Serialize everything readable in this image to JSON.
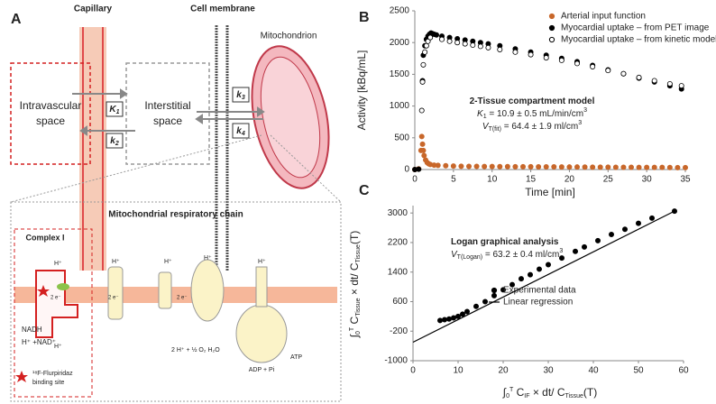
{
  "panels": [
    "A",
    "B",
    "C"
  ],
  "diagram": {
    "capillary": "Capillary",
    "cell_membrane": "Cell membrane",
    "mitochondrion": "Mitochondrion",
    "intravascular": [
      "Intravascular",
      "space"
    ],
    "interstitial": [
      "Interstitial",
      "space"
    ],
    "rates": [
      [
        "K",
        "1"
      ],
      [
        "k",
        "2"
      ],
      [
        "k",
        "3"
      ],
      [
        "k",
        "4"
      ]
    ],
    "chain_title": "Mitochondrial respiratory chain",
    "complex": "Complex I",
    "nadh": "NADH",
    "nad": "H⁺ +NAD⁺",
    "binding": [
      "¹⁸F-Flurpiridaz",
      "binding site"
    ],
    "protons": [
      "H⁺",
      "H⁺",
      "H⁺",
      "H⁺",
      "H⁺",
      "H⁺"
    ],
    "electrons": [
      "2 e⁻",
      "2 e⁻",
      "2 e⁻"
    ],
    "water": "2 H⁺ + ½ O₂ H₂O",
    "atp": "ATP",
    "adp": "ADP + Pi"
  },
  "chart_data": [
    {
      "type": "scatter",
      "xlabel": "Time [min]",
      "ylabel": "Activity [kBq/mL]",
      "xlim": [
        0,
        35
      ],
      "xticks": [
        0,
        5,
        10,
        15,
        20,
        25,
        30,
        35
      ],
      "ylim": [
        0,
        2500
      ],
      "yticks": [
        0,
        500,
        1000,
        1500,
        2000,
        2500
      ],
      "legend": "upper right",
      "annotations": [
        {
          "parts": [
            "2-Tissue compartment model"
          ]
        },
        {
          "parts": [
            "K",
            "1",
            " = 10.9 ± 0.5 mL/min/cm",
            "3"
          ]
        },
        {
          "parts": [
            "V",
            "T(fit)",
            " = 64.4 ± 1.9 ml/cm",
            "3"
          ]
        }
      ],
      "series": [
        {
          "name": "Arterial input function",
          "type": "scatter",
          "color": "#c8672a",
          "filled": true,
          "x": [
            0,
            0.5,
            0.8,
            0.9,
            1.0,
            1.1,
            1.2,
            1.4,
            1.6,
            1.8,
            2,
            2.5,
            3,
            4,
            5,
            6,
            7,
            8,
            9,
            10,
            11,
            12,
            13,
            14,
            15,
            16,
            17,
            18,
            19,
            20,
            21,
            22,
            23,
            24,
            25,
            26,
            27,
            28,
            29,
            30,
            31,
            32,
            33,
            34,
            35
          ],
          "values": [
            0,
            10,
            300,
            520,
            400,
            300,
            220,
            150,
            110,
            90,
            80,
            70,
            65,
            60,
            55,
            52,
            50,
            50,
            48,
            48,
            47,
            46,
            45,
            45,
            44,
            43,
            42,
            42,
            41,
            40,
            40,
            39,
            38,
            38,
            37,
            36,
            36,
            35,
            34,
            34,
            33,
            33,
            32,
            31,
            30
          ]
        },
        {
          "name": "Myocardial uptake – from PET image",
          "type": "scatter",
          "color": "#000000",
          "filled": true,
          "x": [
            0,
            0.5,
            1.0,
            1.1,
            1.3,
            1.5,
            1.7,
            1.9,
            2.1,
            2.3,
            2.5,
            2.8,
            3.5,
            4.5,
            5.5,
            6.5,
            7.5,
            8.5,
            9.5,
            11,
            13,
            15,
            17,
            19,
            21,
            23,
            25,
            27,
            29,
            31,
            33,
            34.5
          ],
          "values": [
            0,
            5,
            1400,
            1800,
            1950,
            2050,
            2100,
            2130,
            2150,
            2140,
            2130,
            2120,
            2100,
            2080,
            2060,
            2040,
            2020,
            2000,
            1980,
            1950,
            1900,
            1850,
            1800,
            1750,
            1700,
            1640,
            1570,
            1510,
            1440,
            1380,
            1320,
            1270
          ]
        },
        {
          "name": "Myocardial uptake – from kinetic model",
          "type": "scatter",
          "color": "#000000",
          "filled": false,
          "x": [
            0.9,
            1.0,
            1.1,
            1.3,
            1.5,
            1.7,
            2.0,
            3.5,
            4.5,
            5.5,
            6.5,
            7.5,
            8.5,
            9.5,
            11,
            13,
            15,
            17,
            19,
            21,
            23,
            25,
            27,
            29,
            31,
            33,
            34.5
          ],
          "values": [
            930,
            1380,
            1650,
            1850,
            1950,
            2020,
            2080,
            2050,
            2020,
            2000,
            1980,
            1960,
            1940,
            1920,
            1890,
            1850,
            1810,
            1760,
            1720,
            1670,
            1620,
            1560,
            1510,
            1450,
            1400,
            1350,
            1320
          ]
        }
      ]
    },
    {
      "type": "scatter",
      "xlabel": {
        "parts": [
          "∫",
          "0",
          "T",
          " C",
          "IF",
          " × dt/ C",
          "Tissue",
          "(T)"
        ]
      },
      "ylabel": {
        "parts": [
          "∫",
          "0",
          "T",
          " C",
          "Tissue",
          " × dt/ C",
          "Tissue",
          "(T)"
        ]
      },
      "xlim": [
        0,
        60
      ],
      "xticks": [
        0,
        10,
        20,
        30,
        40,
        50,
        60
      ],
      "ylim": [
        -1000,
        3200
      ],
      "yticks": [
        -1000,
        -200,
        600,
        1400,
        2200,
        3000
      ],
      "legend": "center right",
      "annotations": [
        {
          "parts": [
            "Logan graphical analysis"
          ]
        },
        {
          "parts": [
            "V",
            "T(Logan)",
            " = 63.2 ± 0.4 ml/cm",
            "3"
          ]
        }
      ],
      "series": [
        {
          "name": "Experimental data",
          "type": "scatter",
          "color": "#000000",
          "filled": true,
          "x": [
            6,
            7,
            8,
            9,
            10,
            11,
            12,
            14,
            16,
            18,
            20,
            22,
            24,
            26,
            28,
            30,
            33,
            36,
            38,
            41,
            44,
            47,
            50,
            53,
            58
          ],
          "values": [
            90,
            110,
            130,
            160,
            200,
            260,
            330,
            470,
            600,
            760,
            920,
            1060,
            1220,
            1330,
            1480,
            1600,
            1780,
            1960,
            2080,
            2250,
            2420,
            2560,
            2720,
            2860,
            3050
          ]
        },
        {
          "name": "Linear regression",
          "type": "line",
          "color": "#000000",
          "x": [
            0,
            58
          ],
          "values": [
            -500,
            3050
          ]
        }
      ]
    }
  ]
}
